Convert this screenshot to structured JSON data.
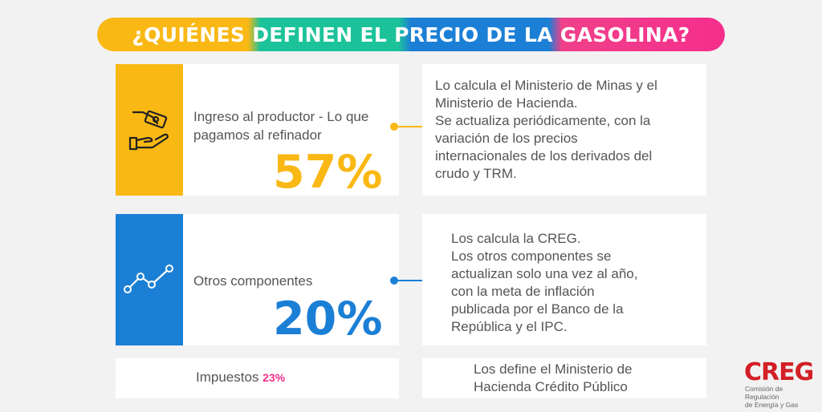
{
  "title": "¿QUIÉNES DEFINEN EL PRECIO DE LA GASOLINA?",
  "colors": {
    "yellow": "#f9b814",
    "green": "#1cc39a",
    "blue": "#1b7fd6",
    "pink": "#f52e8c"
  },
  "rows": [
    {
      "icon": "hand-money-icon",
      "label": "Ingreso al productor - Lo que pagamos al refinador",
      "percent": "57%",
      "description_lines": [
        "Lo calcula el Ministerio de Minas y el",
        "Ministerio de Hacienda.",
        "Se actualiza periódicamente, con la",
        "variación de los precios",
        "internacionales de los derivados del",
        "crudo y TRM."
      ]
    },
    {
      "icon": "line-chart-icon",
      "label": "Otros componentes",
      "percent": "20%",
      "description_lines": [
        "Los calcula la CREG.",
        "Los otros componentes se",
        "actualizan solo una vez al año,",
        "con la meta de inflación",
        "publicada por el Banco de la",
        "República y el IPC."
      ]
    },
    {
      "label": "Impuestos",
      "percent": "23%",
      "description_lines": [
        "Los define el Ministerio de",
        "Hacienda Crédito Público"
      ]
    }
  ],
  "logo": {
    "name": "CREG",
    "subtitle_lines": [
      "Comisión de Regulación",
      "de Energía y Gas"
    ]
  }
}
